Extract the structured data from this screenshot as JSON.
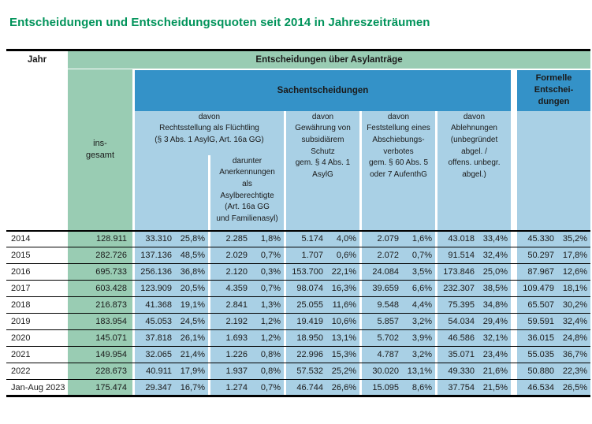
{
  "title": "Entscheidungen und Entscheidungsquoten seit 2014 in Jahreszeiträumen",
  "colors": {
    "title_green": "#00935a",
    "header_green": "#99ccb3",
    "header_dark_blue": "#3492c8",
    "cell_light_blue": "#a9d0e5",
    "text": "#1a1a1a"
  },
  "table": {
    "header": {
      "jahr": "Jahr",
      "top": "Entscheidungen über Asylanträge",
      "insgesamt": "ins-\ngesamt",
      "sachentscheidungen": "Sachentscheidungen",
      "formelle": "Formelle\nEntschei-\ndungen",
      "col_rechtsstellung": "davon\nRechtsstellung als Flüchtling\n(§ 3 Abs. 1 AsylG, Art. 16a GG)",
      "col_darunter": "darunter\nAnerkennungen\nals\nAsylberechtigte\n(Art. 16a GG\nund Familienasyl)",
      "col_subsidiaer": "davon\nGewährung von\nsubsidiärem\nSchutz\ngem. § 4 Abs. 1\nAsylG",
      "col_feststellung": "davon\nFeststellung eines\nAbschiebungs-\nverbotes\ngem. § 60 Abs. 5\noder 7 AufenthG",
      "col_ablehnungen": "davon\nAblehnungen\n(unbegründet\nabgel. /\noffens. unbegr.\nabgel.)"
    },
    "rows": [
      {
        "jahr": "2014",
        "insgesamt": "128.911",
        "values": [
          "33.310",
          "25,8%",
          "2.285",
          "1,8%",
          "5.174",
          "4,0%",
          "2.079",
          "1,6%",
          "43.018",
          "33,4%",
          "45.330",
          "35,2%"
        ]
      },
      {
        "jahr": "2015",
        "insgesamt": "282.726",
        "values": [
          "137.136",
          "48,5%",
          "2.029",
          "0,7%",
          "1.707",
          "0,6%",
          "2.072",
          "0,7%",
          "91.514",
          "32,4%",
          "50.297",
          "17,8%"
        ]
      },
      {
        "jahr": "2016",
        "insgesamt": "695.733",
        "values": [
          "256.136",
          "36,8%",
          "2.120",
          "0,3%",
          "153.700",
          "22,1%",
          "24.084",
          "3,5%",
          "173.846",
          "25,0%",
          "87.967",
          "12,6%"
        ]
      },
      {
        "jahr": "2017",
        "insgesamt": "603.428",
        "values": [
          "123.909",
          "20,5%",
          "4.359",
          "0,7%",
          "98.074",
          "16,3%",
          "39.659",
          "6,6%",
          "232.307",
          "38,5%",
          "109.479",
          "18,1%"
        ]
      },
      {
        "jahr": "2018",
        "insgesamt": "216.873",
        "values": [
          "41.368",
          "19,1%",
          "2.841",
          "1,3%",
          "25.055",
          "11,6%",
          "9.548",
          "4,4%",
          "75.395",
          "34,8%",
          "65.507",
          "30,2%"
        ]
      },
      {
        "jahr": "2019",
        "insgesamt": "183.954",
        "values": [
          "45.053",
          "24,5%",
          "2.192",
          "1,2%",
          "19.419",
          "10,6%",
          "5.857",
          "3,2%",
          "54.034",
          "29,4%",
          "59.591",
          "32,4%"
        ]
      },
      {
        "jahr": "2020",
        "insgesamt": "145.071",
        "values": [
          "37.818",
          "26,1%",
          "1.693",
          "1,2%",
          "18.950",
          "13,1%",
          "5.702",
          "3,9%",
          "46.586",
          "32,1%",
          "36.015",
          "24,8%"
        ]
      },
      {
        "jahr": "2021",
        "insgesamt": "149.954",
        "values": [
          "32.065",
          "21,4%",
          "1.226",
          "0,8%",
          "22.996",
          "15,3%",
          "4.787",
          "3,2%",
          "35.071",
          "23,4%",
          "55.035",
          "36,7%"
        ]
      },
      {
        "jahr": "2022",
        "insgesamt": "228.673",
        "values": [
          "40.911",
          "17,9%",
          "1.937",
          "0,8%",
          "57.532",
          "25,2%",
          "30.020",
          "13,1%",
          "49.330",
          "21,6%",
          "50.880",
          "22,3%"
        ]
      },
      {
        "jahr": "Jan-Aug 2023",
        "insgesamt": "175.474",
        "values": [
          "29.347",
          "16,7%",
          "1.274",
          "0,7%",
          "46.744",
          "26,6%",
          "15.095",
          "8,6%",
          "37.754",
          "21,5%",
          "46.534",
          "26,5%"
        ]
      }
    ]
  }
}
